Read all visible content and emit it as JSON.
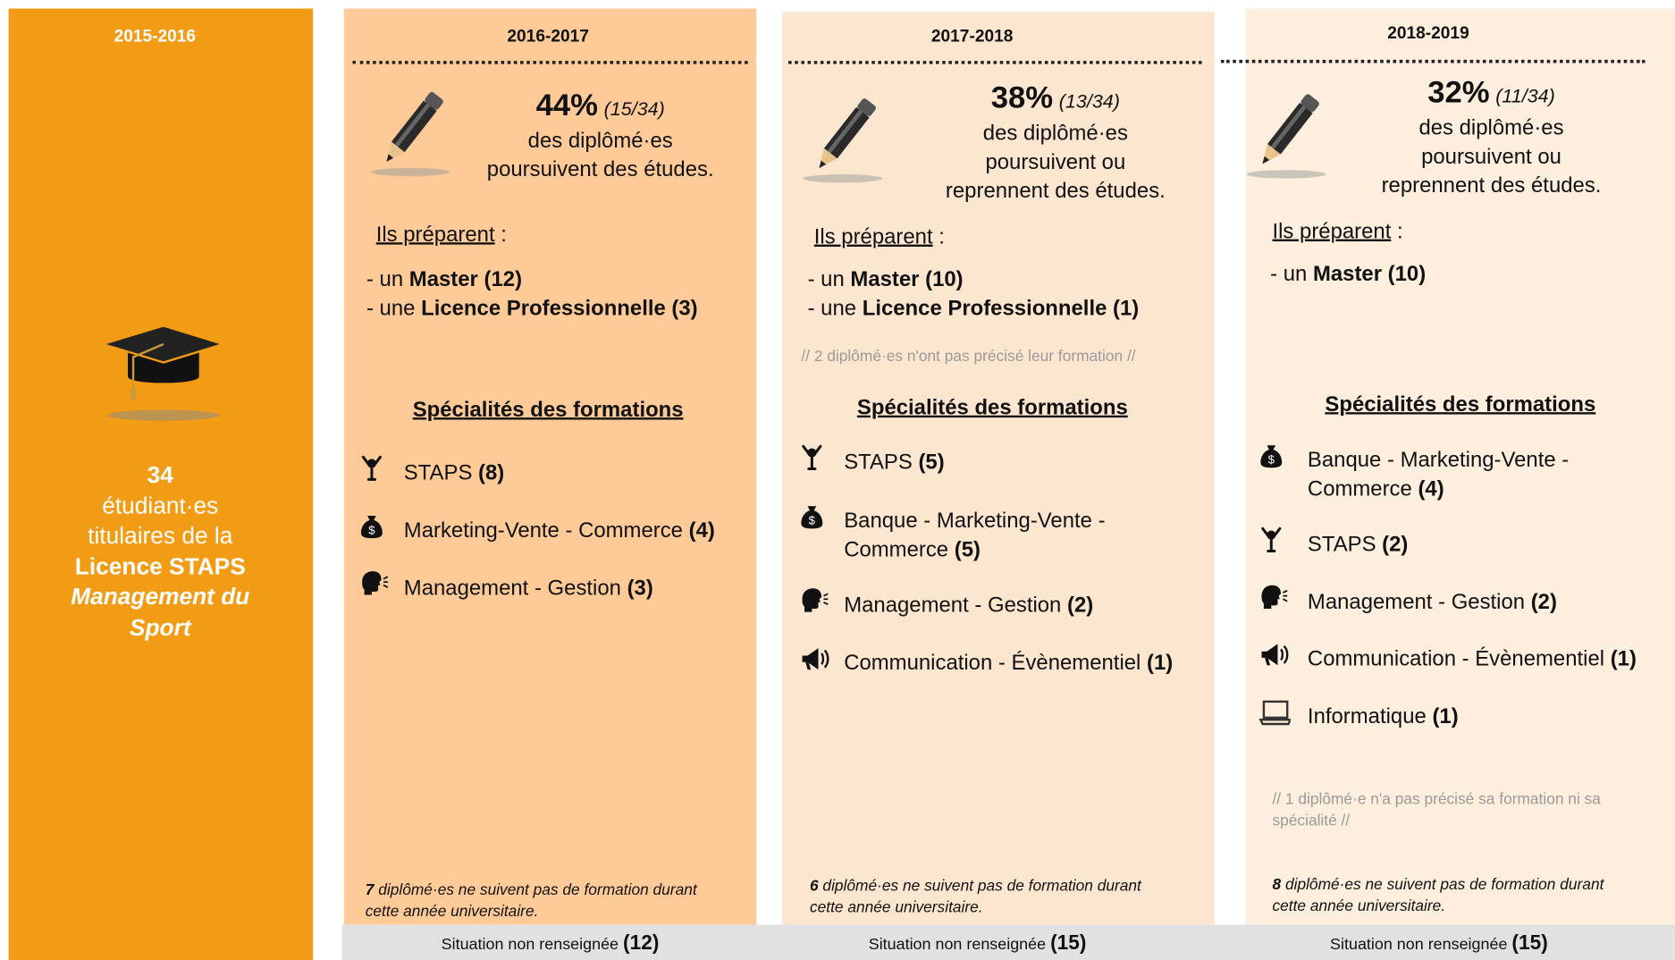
{
  "intro": {
    "year": "2015-2016",
    "count": "34",
    "lines": [
      "étudiant·es",
      "titulaires de la"
    ],
    "degree": "Licence STAPS",
    "specialty_lines": [
      "Management du",
      "Sport"
    ]
  },
  "columns": [
    {
      "year": "2016-2017",
      "percent": "44%",
      "ratio": "(15/34)",
      "description": [
        "des diplômé·es",
        "poursuivent des études."
      ],
      "prepare": {
        "label": "Ils préparent",
        "suffix": ":"
      },
      "programs": [
        {
          "prefix": "- un",
          "label": "Master",
          "count": "(12)"
        },
        {
          "prefix": "- une",
          "label": "Licence Professionnelle",
          "count": "(3)"
        }
      ],
      "specialties_title": "Spécialités des formations",
      "specialties": [
        {
          "name": "STAPS",
          "count": "(8)"
        },
        {
          "name": "Marketing-Vente - Commerce",
          "count": "(4)"
        },
        {
          "name": "Management - Gestion",
          "count": "(3)"
        }
      ],
      "footer": {
        "number": "7",
        "text": "diplômé·es ne suivent pas de formation durant cette année universitaire."
      },
      "situation": {
        "label": "Situation non renseignée",
        "count": "(12)"
      }
    },
    {
      "year": "2017-2018",
      "percent": "38%",
      "ratio": "(13/34)",
      "description": [
        "des diplômé·es",
        "poursuivent ou",
        "reprennent des études."
      ],
      "prepare": {
        "label": "Ils préparent",
        "suffix": ":"
      },
      "programs": [
        {
          "prefix": "- un",
          "label": "Master",
          "count": "(10)"
        },
        {
          "prefix": "- une",
          "label": "Licence Professionnelle",
          "count": "(1)"
        }
      ],
      "note": "// 2 diplômé·es n'ont pas précisé leur formation //",
      "specialties_title": "Spécialités des formations",
      "specialties": [
        {
          "name": "STAPS",
          "count": "(5)"
        },
        {
          "name": "Banque - Marketing-Vente - Commerce",
          "count": "(5)"
        },
        {
          "name": "Management - Gestion",
          "count": "(2)"
        },
        {
          "name": "Communication - Évènementiel",
          "count": "(1)"
        }
      ],
      "footer": {
        "number": "6",
        "text": "diplômé·es ne suivent pas de formation durant cette année universitaire."
      },
      "situation": {
        "label": "Situation non renseignée",
        "count": "(15)"
      }
    },
    {
      "year": "2018-2019",
      "percent": "32%",
      "ratio": "(11/34)",
      "description": [
        "des diplômé·es",
        "poursuivent ou",
        "reprennent des études."
      ],
      "prepare": {
        "label": "Ils préparent",
        "suffix": ":"
      },
      "programs": [
        {
          "prefix": "- un",
          "label": "Master",
          "count": "(10)"
        }
      ],
      "note": "// 1 diplômé·e n'a pas précisé sa formation ni sa spécialité //",
      "specialties_title": "Spécialités des formations",
      "specialties": [
        {
          "name": "Banque - Marketing-Vente - Commerce",
          "count": "(4)"
        },
        {
          "name": "STAPS",
          "count": "(2)"
        },
        {
          "name": "Management - Gestion",
          "count": "(2)"
        },
        {
          "name": "Communication - Évènementiel",
          "count": "(1)"
        },
        {
          "name": "Informatique",
          "count": "(1)"
        }
      ],
      "footer": {
        "number": "8",
        "text": "diplômé·es ne suivent pas de formation durant cette année universitaire."
      },
      "situation": {
        "label": "Situation non renseignée",
        "count": "(15)"
      }
    }
  ]
}
